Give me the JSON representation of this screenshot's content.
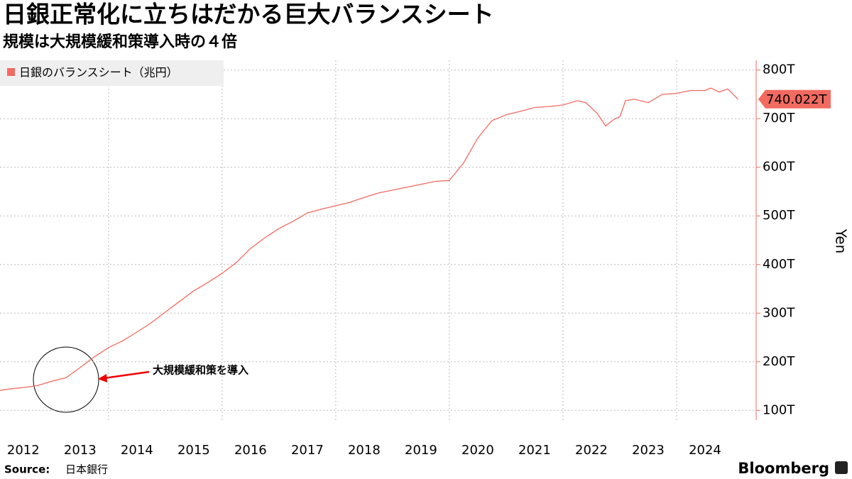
{
  "chart_data": {
    "type": "line",
    "title": "日銀正常化に立ちはだかる巨大バランスシート",
    "subtitle": "規模は大規模緩和策導入時の４倍",
    "y_label": "Yen",
    "annotation": "大規模緩和策を導入",
    "source_label": "Source:",
    "source": "日本銀行",
    "brand": "Bloomberg",
    "x": [
      2012.09,
      2012.25,
      2012.5,
      2012.75,
      2013.0,
      2013.25,
      2013.5,
      2013.75,
      2014.0,
      2014.25,
      2014.5,
      2014.75,
      2015.0,
      2015.25,
      2015.5,
      2015.75,
      2016.0,
      2016.25,
      2016.5,
      2016.75,
      2017.0,
      2017.25,
      2017.5,
      2017.75,
      2018.0,
      2018.25,
      2018.5,
      2018.75,
      2019.0,
      2019.25,
      2019.5,
      2019.75,
      2020.0,
      2020.25,
      2020.5,
      2020.75,
      2021.0,
      2021.25,
      2021.5,
      2021.75,
      2022.0,
      2022.25,
      2022.4,
      2022.6,
      2022.75,
      2022.9,
      2023.0,
      2023.1,
      2023.25,
      2023.5,
      2023.75,
      2024.0,
      2024.25,
      2024.5,
      2024.6,
      2024.75,
      2024.9,
      2025.08
    ],
    "series": [
      {
        "name": "日銀のバランスシート（兆円）",
        "color": "#f26a60",
        "values": [
          141,
          144,
          147,
          151,
          160,
          167,
          188,
          210,
          229,
          243,
          261,
          280,
          302,
          324,
          346,
          363,
          382,
          404,
          433,
          455,
          474,
          489,
          506,
          514,
          521,
          528,
          538,
          547,
          553,
          559,
          565,
          571,
          573,
          609,
          660,
          696,
          708,
          715,
          723,
          725,
          728,
          737,
          733,
          711,
          685,
          699,
          704,
          737,
          740,
          733,
          750,
          752,
          758,
          758,
          763,
          755,
          761,
          740.022
        ],
        "value_labels": [
          null,
          null,
          null,
          null,
          null,
          null,
          null,
          null,
          null,
          null,
          null,
          null,
          null,
          null,
          null,
          null,
          null,
          null,
          null,
          null,
          null,
          null,
          null,
          null,
          null,
          null,
          null,
          null,
          null,
          null,
          null,
          null,
          null,
          null,
          null,
          null,
          null,
          null,
          null,
          null,
          null,
          null,
          null,
          null,
          null,
          null,
          null,
          null,
          null,
          null,
          null,
          null,
          null,
          null,
          null,
          null,
          null,
          "740.022T"
        ]
      }
    ],
    "xlim": [
      2012.09,
      2025.4
    ],
    "xticks": [
      2012,
      2013,
      2014,
      2015,
      2016,
      2017,
      2018,
      2019,
      2020,
      2021,
      2022,
      2023,
      2024
    ],
    "ylim": [
      80,
      820
    ],
    "yticks": [
      {
        "value": 100,
        "label": "100T"
      },
      {
        "value": 200,
        "label": "200T"
      },
      {
        "value": 300,
        "label": "300T"
      },
      {
        "value": 400,
        "label": "400T"
      },
      {
        "value": 500,
        "label": "500T"
      },
      {
        "value": 600,
        "label": "600T"
      },
      {
        "value": 700,
        "label": "700T"
      },
      {
        "value": 800,
        "label": "800T"
      }
    ],
    "grid": true,
    "legend": "top-left"
  }
}
